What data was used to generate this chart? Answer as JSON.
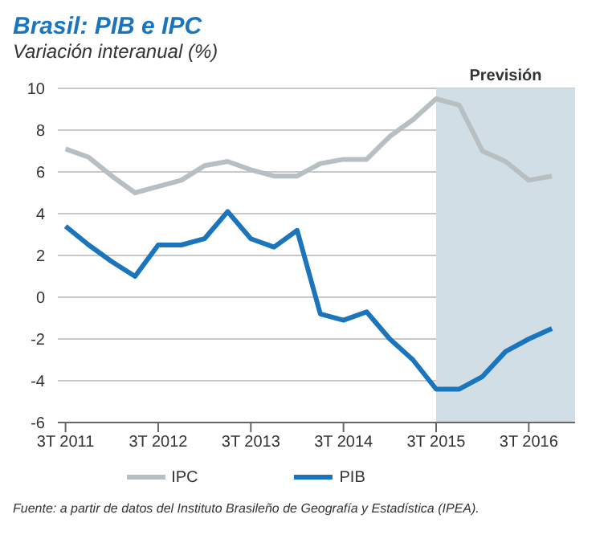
{
  "chart_data": {
    "type": "line",
    "title": "Brasil: PIB e IPC",
    "subtitle": "Variación interanual (%)",
    "x": [
      "2011-07",
      "2011-10",
      "2012-01",
      "2012-04",
      "2012-07",
      "2012-10",
      "2013-01",
      "2013-04",
      "2013-07",
      "2013-10",
      "2014-01",
      "2014-04",
      "2014-07",
      "2014-10",
      "2015-01",
      "2015-04",
      "2015-07",
      "2015-10",
      "2016-01",
      "2016-04",
      "2016-07",
      "2016-10"
    ],
    "series": [
      {
        "name": "PIB",
        "color": "#1a75bc",
        "values": [
          3.4,
          2.5,
          1.7,
          1.0,
          2.5,
          2.5,
          2.8,
          4.1,
          2.8,
          2.4,
          3.2,
          -0.8,
          -1.1,
          -0.7,
          -2.0,
          -3.0,
          -4.4,
          -4.4,
          -3.8,
          -2.6,
          -2.0,
          -1.5
        ]
      },
      {
        "name": "IPC",
        "color": "#b8bfc2",
        "values": [
          7.1,
          6.7,
          5.8,
          5.0,
          5.3,
          5.6,
          6.3,
          6.5,
          6.1,
          5.8,
          5.8,
          6.4,
          6.6,
          6.6,
          7.7,
          8.5,
          9.5,
          9.2,
          7.0,
          6.5,
          5.6,
          5.8
        ]
      }
    ],
    "xlim": [
      "2011-06",
      "2017-01"
    ],
    "xticks": [
      {
        "value": "2011-07",
        "label": "3T 2011"
      },
      {
        "value": "2012-07",
        "label": "3T 2012"
      },
      {
        "value": "2013-07",
        "label": "3T 2013"
      },
      {
        "value": "2014-07",
        "label": "3T 2014"
      },
      {
        "value": "2015-07",
        "label": "3T 2015"
      },
      {
        "value": "2016-07",
        "label": "3T 2016"
      }
    ],
    "ylim": [
      -6,
      10
    ],
    "yticks": [
      -6,
      -4,
      -2,
      0,
      2,
      4,
      6,
      8,
      10
    ],
    "grid": "y",
    "legend": "bottom",
    "marker": "none",
    "line_style": "solid",
    "bands": [
      {
        "axis": "x",
        "from": "2015-07",
        "to": "2017-01",
        "label": "Previsión",
        "color": "#d2dee6"
      }
    ],
    "annotations": [
      "Fuente: a partir de datos del Instituto Brasileño de Geografía y Estadística (IPEA)."
    ]
  }
}
